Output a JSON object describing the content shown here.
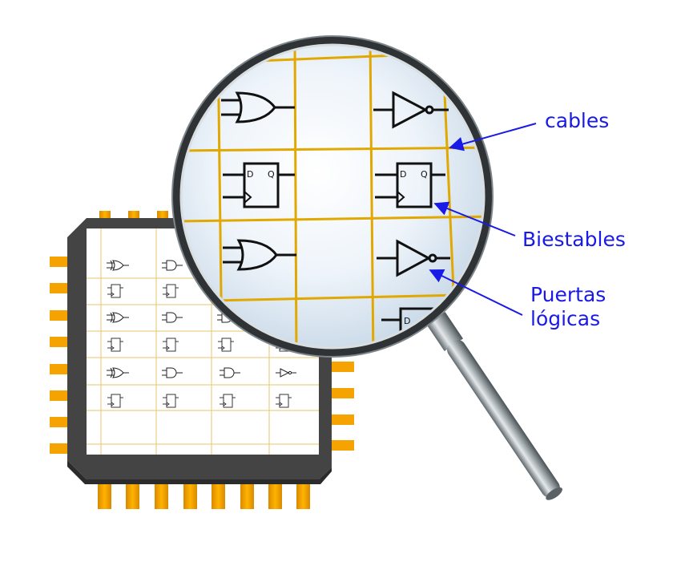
{
  "labels": {
    "wires": "cables",
    "flip_flops": "Biestables",
    "logic_gates_line1": "Puertas",
    "logic_gates_line2": "lógicas"
  },
  "flipflop_pins": {
    "d": "D",
    "q": "Q"
  },
  "colors": {
    "label_text": "#1a1ae6",
    "arrow": "#1a1ae6",
    "grid_wire": "#e0a800",
    "chip_body": "#444444",
    "chip_pin": "#f5a300",
    "lens_tint": "#dde9f5",
    "magnifier_handle": "#8a9297"
  },
  "icons": [
    "xor-gate-icon",
    "or-gate-icon",
    "and-gate-icon",
    "not-gate-icon",
    "d-flipflop-icon",
    "magnifier-icon",
    "chip-icon"
  ]
}
